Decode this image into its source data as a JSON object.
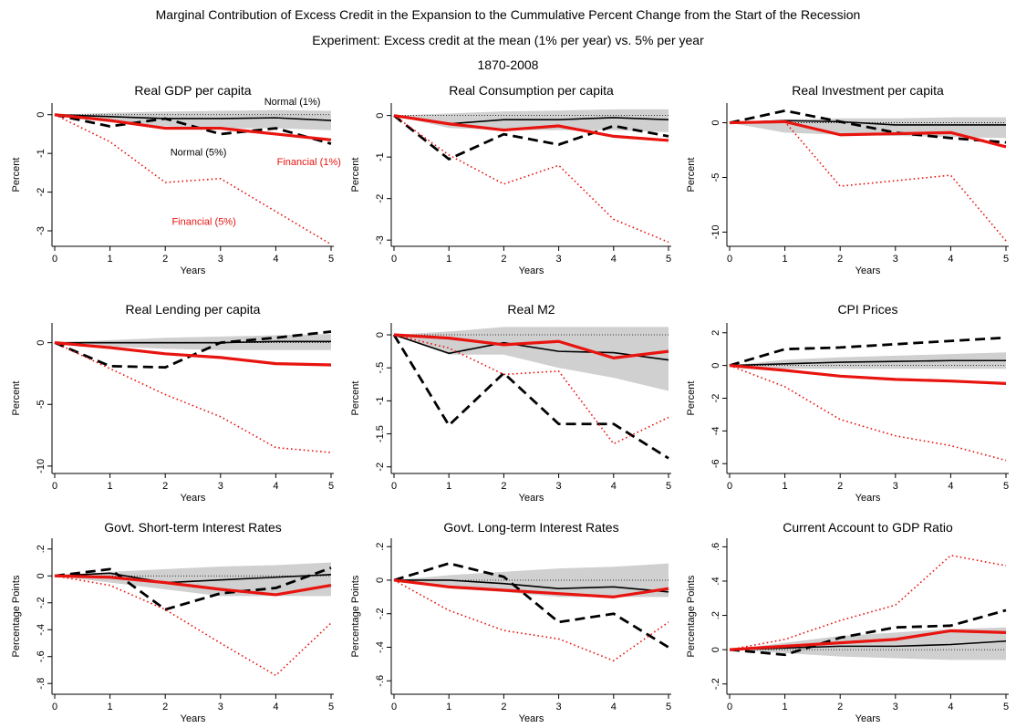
{
  "figure": {
    "title": "Marginal Contribution of Excess Credit in the Expansion to the Cummulative Percent Change from the Start of the Recession",
    "subtitle": "Experiment: Excess credit at the mean (1% per year) vs. 5% per year",
    "period": "1870-2008"
  },
  "series_style": {
    "normal_1": {
      "color": "#000000",
      "style": "solid-thin"
    },
    "normal_5": {
      "color": "#000000",
      "style": "dashed-thick"
    },
    "financial_1": {
      "color": "#e8140f",
      "style": "solid-thick"
    },
    "financial_5": {
      "color": "#e8140f",
      "style": "dotted"
    },
    "band": {
      "color": "#d0d0d0"
    }
  },
  "chart_data": [
    {
      "type": "line",
      "title": "Real GDP per capita",
      "xlabel": "Years",
      "ylabel": "Percent",
      "x": [
        0,
        1,
        2,
        3,
        4,
        5
      ],
      "ylim": [
        -3.4,
        0.3
      ],
      "yticks": [
        0,
        -1,
        -2,
        -3
      ],
      "yticklabels": [
        "0",
        "-1",
        "-2",
        "-3"
      ],
      "band": {
        "upper": [
          0,
          0.05,
          0.08,
          0.1,
          0.12,
          0.1
        ],
        "lower": [
          0,
          -0.2,
          -0.3,
          -0.35,
          -0.35,
          -0.4
        ]
      },
      "series": [
        {
          "id": "normal_1",
          "name": "Normal (1%)",
          "values": [
            0,
            -0.05,
            -0.1,
            -0.1,
            -0.08,
            -0.15
          ]
        },
        {
          "id": "normal_5",
          "name": "Normal (5%)",
          "values": [
            0,
            -0.3,
            -0.1,
            -0.5,
            -0.35,
            -0.75
          ]
        },
        {
          "id": "financial_1",
          "name": "Financial (1%)",
          "values": [
            0,
            -0.15,
            -0.35,
            -0.35,
            -0.5,
            -0.65
          ]
        },
        {
          "id": "financial_5",
          "name": "Financial (5%)",
          "values": [
            0,
            -0.7,
            -1.75,
            -1.65,
            -2.5,
            -3.35
          ]
        }
      ],
      "annotations": [
        {
          "text": "Normal (1%)",
          "x": 4.3,
          "y": 0.25,
          "color": "#000000",
          "anchor": "middle"
        },
        {
          "text": "Normal (5%)",
          "x": 2.6,
          "y": -1.05,
          "color": "#000000",
          "anchor": "middle"
        },
        {
          "text": "Financial (1%)",
          "x": 4.6,
          "y": -1.3,
          "color": "#e8140f",
          "anchor": "middle"
        },
        {
          "text": "Financial (5%)",
          "x": 2.7,
          "y": -2.85,
          "color": "#e8140f",
          "anchor": "middle"
        }
      ]
    },
    {
      "type": "line",
      "title": "Real Consumption per capita",
      "xlabel": "Years",
      "ylabel": "Percent",
      "x": [
        0,
        1,
        2,
        3,
        4,
        5
      ],
      "ylim": [
        -3.15,
        0.3
      ],
      "yticks": [
        0,
        -1,
        -2,
        -3
      ],
      "yticklabels": [
        "0",
        "-1",
        "-2",
        "-3"
      ],
      "band": {
        "upper": [
          0,
          0.05,
          0.1,
          0.12,
          0.15,
          0.15
        ],
        "lower": [
          0,
          -0.3,
          -0.35,
          -0.35,
          -0.35,
          -0.4
        ]
      },
      "series": [
        {
          "id": "normal_1",
          "name": "Normal (1%)",
          "values": [
            0,
            -0.2,
            -0.1,
            -0.1,
            -0.05,
            -0.1
          ]
        },
        {
          "id": "normal_5",
          "name": "Normal (5%)",
          "values": [
            0,
            -1.05,
            -0.45,
            -0.7,
            -0.25,
            -0.5
          ]
        },
        {
          "id": "financial_1",
          "name": "Financial (1%)",
          "values": [
            0,
            -0.2,
            -0.35,
            -0.25,
            -0.5,
            -0.6
          ]
        },
        {
          "id": "financial_5",
          "name": "Financial (5%)",
          "values": [
            0,
            -0.95,
            -1.65,
            -1.2,
            -2.5,
            -3.05
          ]
        }
      ]
    },
    {
      "type": "line",
      "title": "Real Investment per capita",
      "xlabel": "Years",
      "ylabel": "Percent",
      "x": [
        0,
        1,
        2,
        3,
        4,
        5
      ],
      "ylim": [
        -11.3,
        1.8
      ],
      "yticks": [
        0,
        -5,
        -10
      ],
      "yticklabels": [
        "0",
        "-5",
        "-10"
      ],
      "band": {
        "upper": [
          0,
          0.3,
          0.4,
          0.4,
          0.5,
          0.5
        ],
        "lower": [
          0,
          -0.9,
          -1.1,
          -1.2,
          -1.3,
          -1.4
        ]
      },
      "series": [
        {
          "id": "normal_1",
          "name": "Normal (1%)",
          "values": [
            0,
            0.2,
            0.1,
            -0.2,
            -0.2,
            -0.2
          ]
        },
        {
          "id": "normal_5",
          "name": "Normal (5%)",
          "values": [
            0,
            1.1,
            0.1,
            -0.9,
            -1.4,
            -1.8
          ]
        },
        {
          "id": "financial_1",
          "name": "Financial (1%)",
          "values": [
            0,
            0.1,
            -1.1,
            -1.0,
            -0.9,
            -2.2
          ]
        },
        {
          "id": "financial_5",
          "name": "Financial (5%)",
          "values": [
            0,
            0.1,
            -5.8,
            -5.3,
            -4.8,
            -10.8
          ]
        }
      ]
    },
    {
      "type": "line",
      "title": "Real Lending per capita",
      "xlabel": "Years",
      "ylabel": "Percent",
      "x": [
        0,
        1,
        2,
        3,
        4,
        5
      ],
      "ylim": [
        -10.6,
        1.6
      ],
      "yticks": [
        0,
        -5,
        -10
      ],
      "yticklabels": [
        "0",
        "-5",
        "-10"
      ],
      "band": {
        "upper": [
          0,
          0.2,
          0.4,
          0.5,
          0.6,
          0.7
        ],
        "lower": [
          0,
          -0.3,
          -0.5,
          -0.6,
          -0.6,
          -0.6
        ]
      },
      "series": [
        {
          "id": "normal_1",
          "name": "Normal (1%)",
          "values": [
            0,
            0,
            0,
            0,
            0.1,
            0.1
          ]
        },
        {
          "id": "normal_5",
          "name": "Normal (5%)",
          "values": [
            0,
            -1.9,
            -2.0,
            0,
            0.4,
            0.9
          ]
        },
        {
          "id": "financial_1",
          "name": "Financial (1%)",
          "values": [
            0,
            -0.4,
            -0.9,
            -1.2,
            -1.7,
            -1.8
          ]
        },
        {
          "id": "financial_5",
          "name": "Financial (5%)",
          "values": [
            0,
            -2.1,
            -4.2,
            -6.0,
            -8.5,
            -8.9
          ]
        }
      ]
    },
    {
      "type": "line",
      "title": "Real M2",
      "xlabel": "Years",
      "ylabel": "Percent",
      "x": [
        0,
        1,
        2,
        3,
        4,
        5
      ],
      "ylim": [
        -2.1,
        0.18
      ],
      "yticks": [
        0,
        -0.5,
        -1,
        -1.5,
        -2
      ],
      "yticklabels": [
        "0",
        "-.5",
        "-1",
        "-1.5",
        "-2"
      ],
      "band": {
        "upper": [
          0,
          0.05,
          0.12,
          0.12,
          0.12,
          0.12
        ],
        "lower": [
          0,
          -0.3,
          -0.3,
          -0.5,
          -0.65,
          -0.85
        ]
      },
      "series": [
        {
          "id": "normal_1",
          "name": "Normal (1%)",
          "values": [
            0,
            -0.28,
            -0.12,
            -0.25,
            -0.27,
            -0.38
          ]
        },
        {
          "id": "normal_5",
          "name": "Normal (5%)",
          "values": [
            0,
            -1.37,
            -0.58,
            -1.35,
            -1.35,
            -1.87
          ]
        },
        {
          "id": "financial_1",
          "name": "Financial (1%)",
          "values": [
            0,
            -0.05,
            -0.15,
            -0.1,
            -0.35,
            -0.25
          ]
        },
        {
          "id": "financial_5",
          "name": "Financial (5%)",
          "values": [
            0,
            -0.2,
            -0.6,
            -0.55,
            -1.65,
            -1.25
          ]
        }
      ]
    },
    {
      "type": "line",
      "title": "CPI Prices",
      "xlabel": "Years",
      "ylabel": "Percent",
      "x": [
        0,
        1,
        2,
        3,
        4,
        5
      ],
      "ylim": [
        -6.6,
        2.6
      ],
      "yticks": [
        2,
        0,
        -2,
        -4,
        -6
      ],
      "yticklabels": [
        "2",
        "0",
        "-2",
        "-4",
        "-6"
      ],
      "band": {
        "upper": [
          0,
          0.35,
          0.5,
          0.6,
          0.7,
          0.8
        ],
        "lower": [
          0,
          -0.2,
          -0.2,
          -0.2,
          -0.2,
          -0.2
        ]
      },
      "series": [
        {
          "id": "normal_1",
          "name": "Normal (1%)",
          "values": [
            0,
            0.1,
            0.2,
            0.25,
            0.3,
            0.3
          ]
        },
        {
          "id": "normal_5",
          "name": "Normal (5%)",
          "values": [
            0,
            1.0,
            1.1,
            1.3,
            1.5,
            1.7
          ]
        },
        {
          "id": "financial_1",
          "name": "Financial (1%)",
          "values": [
            0,
            -0.3,
            -0.65,
            -0.85,
            -0.95,
            -1.1
          ]
        },
        {
          "id": "financial_5",
          "name": "Financial (5%)",
          "values": [
            0,
            -1.3,
            -3.3,
            -4.3,
            -4.9,
            -5.8
          ]
        }
      ]
    },
    {
      "type": "line",
      "title": "Govt. Short-term Interest Rates",
      "xlabel": "Years",
      "ylabel": "Percentage Points",
      "x": [
        0,
        1,
        2,
        3,
        4,
        5
      ],
      "ylim": [
        -0.88,
        0.28
      ],
      "yticks": [
        0.2,
        0,
        -0.2,
        -0.4,
        -0.6,
        -0.8
      ],
      "yticklabels": [
        ".2",
        "0",
        "-.2",
        "-.4",
        "-.6",
        "-.8"
      ],
      "band": {
        "upper": [
          0,
          0.03,
          0.05,
          0.07,
          0.08,
          0.1
        ],
        "lower": [
          0,
          -0.05,
          -0.1,
          -0.15,
          -0.15,
          -0.15
        ]
      },
      "series": [
        {
          "id": "normal_1",
          "name": "Normal (1%)",
          "values": [
            0,
            0.02,
            -0.05,
            -0.03,
            -0.01,
            0.01
          ]
        },
        {
          "id": "normal_5",
          "name": "Normal (5%)",
          "values": [
            0,
            0.05,
            -0.25,
            -0.13,
            -0.09,
            0.06
          ]
        },
        {
          "id": "financial_1",
          "name": "Financial (1%)",
          "values": [
            0,
            -0.01,
            -0.05,
            -0.1,
            -0.14,
            -0.07
          ]
        },
        {
          "id": "financial_5",
          "name": "Financial (5%)",
          "values": [
            0,
            -0.07,
            -0.25,
            -0.5,
            -0.74,
            -0.35
          ]
        }
      ]
    },
    {
      "type": "line",
      "title": "Govt. Long-term Interest Rates",
      "xlabel": "Years",
      "ylabel": "Percentage Points",
      "x": [
        0,
        1,
        2,
        3,
        4,
        5
      ],
      "ylim": [
        -0.68,
        0.25
      ],
      "yticks": [
        0.2,
        0,
        -0.2,
        -0.4,
        -0.6
      ],
      "yticklabels": [
        ".2",
        "0",
        "-.2",
        "-.4",
        "-.6"
      ],
      "band": {
        "upper": [
          0,
          0.03,
          0.05,
          0.07,
          0.08,
          0.1
        ],
        "lower": [
          0,
          -0.05,
          -0.07,
          -0.1,
          -0.1,
          -0.1
        ]
      },
      "series": [
        {
          "id": "normal_1",
          "name": "Normal (1%)",
          "values": [
            0,
            0,
            -0.02,
            -0.05,
            -0.04,
            -0.07
          ]
        },
        {
          "id": "normal_5",
          "name": "Normal (5%)",
          "values": [
            0,
            0.1,
            0.02,
            -0.25,
            -0.2,
            -0.4
          ]
        },
        {
          "id": "financial_1",
          "name": "Financial (1%)",
          "values": [
            0,
            -0.04,
            -0.06,
            -0.08,
            -0.1,
            -0.05
          ]
        },
        {
          "id": "financial_5",
          "name": "Financial (5%)",
          "values": [
            0,
            -0.18,
            -0.3,
            -0.35,
            -0.48,
            -0.25
          ]
        }
      ]
    },
    {
      "type": "line",
      "title": "Current Account to GDP Ratio",
      "xlabel": "Years",
      "ylabel": "Percentage Points",
      "x": [
        0,
        1,
        2,
        3,
        4,
        5
      ],
      "ylim": [
        -0.26,
        0.65
      ],
      "yticks": [
        0.6,
        0.4,
        0.2,
        0,
        -0.2
      ],
      "yticklabels": [
        ".6",
        ".4",
        ".2",
        "0",
        "-.2"
      ],
      "band": {
        "upper": [
          0,
          0.04,
          0.08,
          0.1,
          0.12,
          0.13
        ],
        "lower": [
          0,
          -0.02,
          -0.04,
          -0.05,
          -0.06,
          -0.06
        ]
      },
      "series": [
        {
          "id": "normal_1",
          "name": "Normal (1%)",
          "values": [
            0,
            0.01,
            0.02,
            0.02,
            0.03,
            0.05
          ]
        },
        {
          "id": "normal_5",
          "name": "Normal (5%)",
          "values": [
            0,
            -0.03,
            0.07,
            0.13,
            0.14,
            0.23
          ]
        },
        {
          "id": "financial_1",
          "name": "Financial (1%)",
          "values": [
            0,
            0.02,
            0.04,
            0.06,
            0.11,
            0.1
          ]
        },
        {
          "id": "financial_5",
          "name": "Financial (5%)",
          "values": [
            0,
            0.06,
            0.17,
            0.26,
            0.55,
            0.49
          ]
        }
      ]
    }
  ]
}
